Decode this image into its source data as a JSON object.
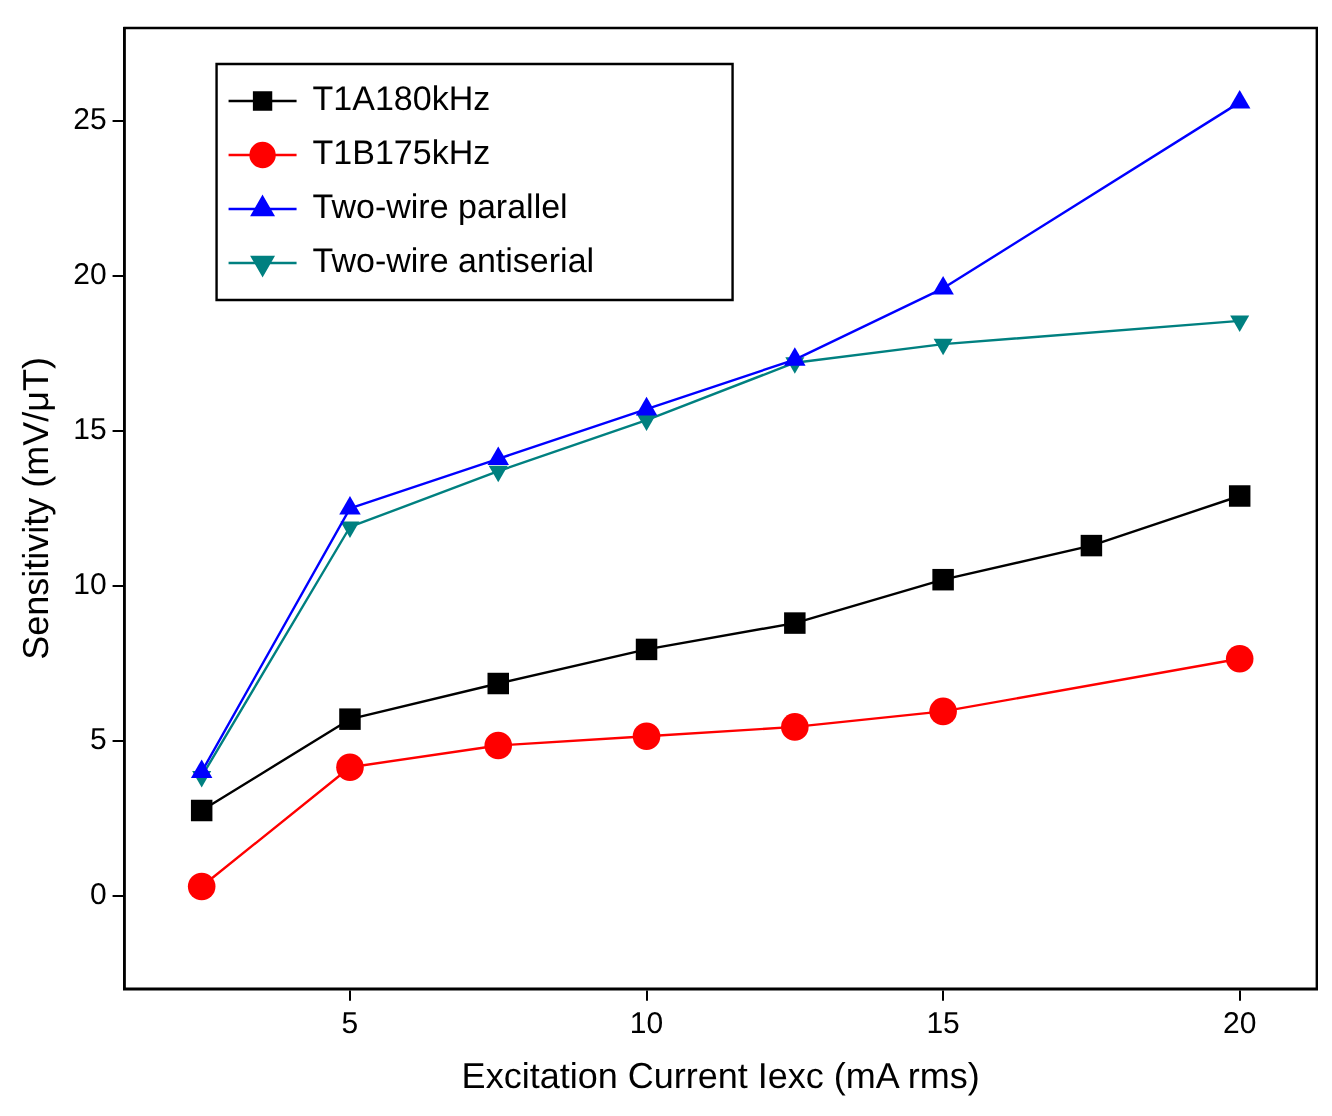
{
  "chart_data": {
    "type": "line",
    "xlabel": "Excitation Current Iexc (mA rms)",
    "ylabel": "Sensitivity (mV/μT)",
    "xlim": [
      1.2,
      21.3
    ],
    "xticks": [
      5,
      10,
      15,
      20
    ],
    "ylim": [
      -3,
      28
    ],
    "yticks": [
      0,
      5,
      10,
      15,
      20,
      25
    ],
    "grid": false,
    "legend": "top left",
    "line_style": "solid",
    "series": [
      {
        "name": "T1A180kHz",
        "color": "#000000",
        "marker": "square",
        "x": [
          2.5,
          5,
          7.5,
          10,
          12.5,
          15,
          17.5,
          20
        ],
        "values": [
          2.75,
          5.7,
          6.85,
          7.95,
          8.8,
          10.2,
          11.3,
          12.9
        ]
      },
      {
        "name": "T1B175kHz",
        "color": "#ff0000",
        "marker": "circle",
        "x": [
          2.5,
          5,
          7.5,
          10,
          12.5,
          15,
          20
        ],
        "values": [
          0.3,
          4.15,
          4.85,
          5.15,
          5.45,
          5.95,
          7.65
        ]
      },
      {
        "name": "Two-wire parallel",
        "color": "#0000ff",
        "marker": "triangle",
        "x": [
          2.5,
          5,
          7.5,
          10,
          12.5,
          15,
          20
        ],
        "values": [
          4.0,
          12.5,
          14.1,
          15.7,
          17.3,
          19.6,
          25.6
        ]
      },
      {
        "name": "Two-wire antiserial",
        "color": "#008080",
        "marker": "triangle-down",
        "x": [
          2.5,
          5,
          7.5,
          10,
          12.5,
          15,
          20
        ],
        "values": [
          3.85,
          11.9,
          13.7,
          15.35,
          17.2,
          17.8,
          18.55
        ]
      }
    ]
  }
}
